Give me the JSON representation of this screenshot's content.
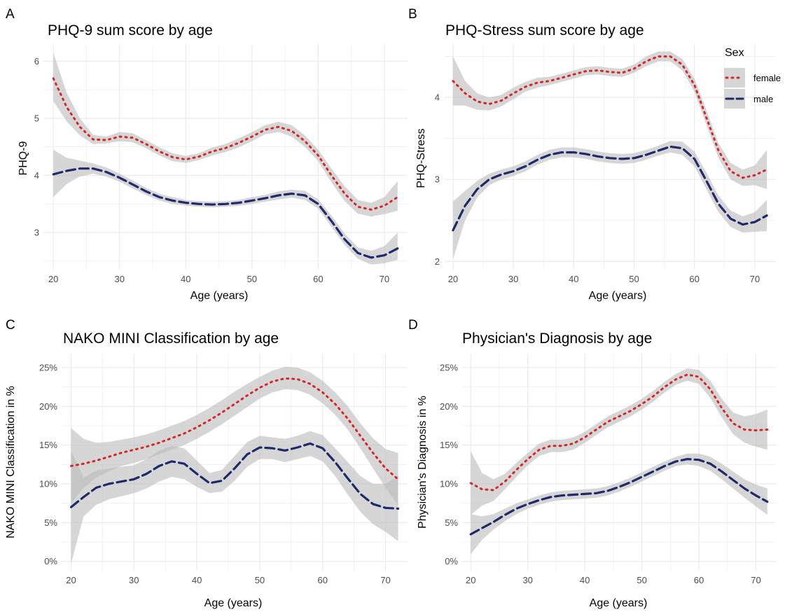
{
  "figure": {
    "legend": {
      "title": "Sex",
      "entries": [
        {
          "label": "female",
          "color": "#d62728",
          "style": "dotted"
        },
        {
          "label": "male",
          "color": "#1f2a6b",
          "style": "dashed"
        }
      ],
      "placement": "top-right of panel B"
    },
    "band_color": "#bdbdbd"
  },
  "chart_data": [
    {
      "panel_letter": "A",
      "type": "line",
      "title": "PHQ-9 sum score by age",
      "xlabel": "Age (years)",
      "ylabel": "PHQ-9",
      "xlim": [
        18.5,
        73.5
      ],
      "ylim": [
        2.35,
        6.3
      ],
      "x_ticks": [
        20,
        30,
        40,
        50,
        60,
        70
      ],
      "x_tick_labels": [
        "20",
        "30",
        "40",
        "50",
        "60",
        "70"
      ],
      "y_ticks": [
        3,
        4,
        5,
        6
      ],
      "y_tick_labels": [
        "3",
        "4",
        "5",
        "6"
      ],
      "grid": true,
      "series": [
        {
          "name": "female",
          "x": [
            20,
            22,
            24,
            26,
            28,
            30,
            32,
            34,
            36,
            38,
            40,
            42,
            44,
            46,
            48,
            50,
            52,
            54,
            56,
            58,
            60,
            62,
            64,
            66,
            68,
            70,
            72
          ],
          "y": [
            5.7,
            5.2,
            4.85,
            4.63,
            4.62,
            4.68,
            4.66,
            4.55,
            4.42,
            4.32,
            4.28,
            4.33,
            4.42,
            4.48,
            4.57,
            4.68,
            4.8,
            4.85,
            4.78,
            4.6,
            4.35,
            4.0,
            3.68,
            3.45,
            3.4,
            3.47,
            3.62
          ],
          "lower": [
            5.3,
            4.95,
            4.7,
            4.55,
            4.56,
            4.6,
            4.58,
            4.48,
            4.35,
            4.25,
            4.22,
            4.27,
            4.35,
            4.41,
            4.49,
            4.6,
            4.72,
            4.76,
            4.68,
            4.5,
            4.25,
            3.88,
            3.55,
            3.33,
            3.28,
            3.32,
            3.38
          ],
          "upper": [
            6.15,
            5.45,
            5.0,
            4.71,
            4.68,
            4.76,
            4.74,
            4.62,
            4.49,
            4.39,
            4.34,
            4.39,
            4.49,
            4.55,
            4.65,
            4.76,
            4.88,
            4.94,
            4.88,
            4.7,
            4.45,
            4.12,
            3.81,
            3.57,
            3.52,
            3.62,
            3.9
          ]
        },
        {
          "name": "male",
          "x": [
            20,
            22,
            24,
            26,
            28,
            30,
            32,
            34,
            36,
            38,
            40,
            42,
            44,
            46,
            48,
            50,
            52,
            54,
            56,
            58,
            60,
            62,
            64,
            66,
            68,
            70,
            72
          ],
          "y": [
            4.02,
            4.08,
            4.12,
            4.12,
            4.06,
            3.96,
            3.84,
            3.72,
            3.62,
            3.56,
            3.52,
            3.5,
            3.49,
            3.5,
            3.52,
            3.56,
            3.6,
            3.65,
            3.68,
            3.65,
            3.5,
            3.2,
            2.88,
            2.64,
            2.56,
            2.6,
            2.72
          ],
          "lower": [
            3.62,
            3.85,
            3.98,
            4.03,
            3.98,
            3.89,
            3.77,
            3.66,
            3.56,
            3.5,
            3.47,
            3.45,
            3.44,
            3.45,
            3.47,
            3.5,
            3.54,
            3.58,
            3.61,
            3.57,
            3.42,
            3.1,
            2.78,
            2.54,
            2.44,
            2.46,
            2.52
          ],
          "upper": [
            4.45,
            4.31,
            4.26,
            4.21,
            4.14,
            4.03,
            3.91,
            3.78,
            3.68,
            3.62,
            3.57,
            3.55,
            3.54,
            3.55,
            3.57,
            3.62,
            3.66,
            3.72,
            3.75,
            3.73,
            3.58,
            3.3,
            2.98,
            2.74,
            2.68,
            2.76,
            3.0
          ]
        }
      ]
    },
    {
      "panel_letter": "B",
      "type": "line",
      "title": "PHQ-Stress sum score by age",
      "xlabel": "Age (years)",
      "ylabel": "PHQ-Stress",
      "xlim": [
        18.5,
        73.5
      ],
      "ylim": [
        1.9,
        4.65
      ],
      "x_ticks": [
        20,
        30,
        40,
        50,
        60,
        70
      ],
      "x_tick_labels": [
        "20",
        "30",
        "40",
        "50",
        "60",
        "70"
      ],
      "y_ticks": [
        2,
        3,
        4
      ],
      "y_tick_labels": [
        "2",
        "3",
        "4"
      ],
      "grid": true,
      "series": [
        {
          "name": "female",
          "x": [
            20,
            22,
            24,
            26,
            28,
            30,
            32,
            34,
            36,
            38,
            40,
            42,
            44,
            46,
            48,
            50,
            52,
            54,
            56,
            58,
            60,
            62,
            64,
            66,
            68,
            70,
            72
          ],
          "y": [
            4.2,
            4.05,
            3.95,
            3.92,
            3.96,
            4.05,
            4.13,
            4.18,
            4.2,
            4.24,
            4.28,
            4.32,
            4.33,
            4.31,
            4.3,
            4.35,
            4.44,
            4.5,
            4.5,
            4.4,
            4.15,
            3.75,
            3.35,
            3.1,
            3.02,
            3.05,
            3.12
          ],
          "lower": [
            3.9,
            3.9,
            3.85,
            3.84,
            3.89,
            3.98,
            4.07,
            4.12,
            4.15,
            4.19,
            4.23,
            4.27,
            4.28,
            4.26,
            4.25,
            4.3,
            4.38,
            4.44,
            4.44,
            4.33,
            4.07,
            3.66,
            3.26,
            3.0,
            2.92,
            2.93,
            2.88
          ],
          "upper": [
            4.5,
            4.2,
            4.05,
            4.0,
            4.03,
            4.12,
            4.19,
            4.24,
            4.25,
            4.29,
            4.33,
            4.37,
            4.38,
            4.36,
            4.35,
            4.4,
            4.5,
            4.56,
            4.56,
            4.47,
            4.23,
            3.84,
            3.44,
            3.2,
            3.12,
            3.17,
            3.36
          ]
        },
        {
          "name": "male",
          "x": [
            20,
            22,
            24,
            26,
            28,
            30,
            32,
            34,
            36,
            38,
            40,
            42,
            44,
            46,
            48,
            50,
            52,
            54,
            56,
            58,
            60,
            62,
            64,
            66,
            68,
            70,
            72
          ],
          "y": [
            2.38,
            2.68,
            2.88,
            3.0,
            3.06,
            3.1,
            3.16,
            3.24,
            3.3,
            3.33,
            3.33,
            3.31,
            3.28,
            3.26,
            3.25,
            3.26,
            3.3,
            3.35,
            3.4,
            3.38,
            3.25,
            2.98,
            2.7,
            2.52,
            2.45,
            2.48,
            2.56
          ],
          "lower": [
            2.03,
            2.5,
            2.78,
            2.93,
            3.0,
            3.04,
            3.1,
            3.18,
            3.24,
            3.27,
            3.27,
            3.25,
            3.22,
            3.2,
            3.19,
            3.2,
            3.24,
            3.29,
            3.33,
            3.3,
            3.16,
            2.88,
            2.6,
            2.42,
            2.35,
            2.36,
            2.37
          ],
          "upper": [
            2.73,
            2.86,
            2.98,
            3.07,
            3.12,
            3.16,
            3.22,
            3.3,
            3.36,
            3.39,
            3.39,
            3.37,
            3.34,
            3.32,
            3.31,
            3.32,
            3.36,
            3.41,
            3.47,
            3.46,
            3.34,
            3.08,
            2.8,
            2.62,
            2.55,
            2.6,
            2.75
          ]
        }
      ]
    },
    {
      "panel_letter": "C",
      "type": "line",
      "title": "NAKO MINI Classification by age",
      "xlabel": "Age (years)",
      "ylabel": "NAKO MINI Classification in %",
      "xlim": [
        18.5,
        73.5
      ],
      "ylim": [
        -1.2,
        26.8
      ],
      "x_ticks": [
        20,
        30,
        40,
        50,
        60,
        70
      ],
      "x_tick_labels": [
        "20",
        "30",
        "40",
        "50",
        "60",
        "70"
      ],
      "y_ticks": [
        0,
        5,
        10,
        15,
        20,
        25
      ],
      "y_tick_labels": [
        "0%",
        "5%",
        "10%",
        "15%",
        "20%",
        "25%"
      ],
      "grid": true,
      "series": [
        {
          "name": "female",
          "x": [
            20,
            22,
            24,
            26,
            28,
            30,
            32,
            34,
            36,
            38,
            40,
            42,
            44,
            46,
            48,
            50,
            52,
            54,
            56,
            58,
            60,
            62,
            64,
            66,
            68,
            70,
            72
          ],
          "y": [
            12.3,
            12.6,
            13.0,
            13.5,
            14.0,
            14.4,
            14.8,
            15.3,
            15.9,
            16.5,
            17.3,
            18.2,
            19.2,
            20.3,
            21.4,
            22.4,
            23.2,
            23.6,
            23.5,
            22.9,
            21.8,
            20.3,
            18.4,
            16.2,
            14.0,
            12.0,
            10.6
          ],
          "lower": [
            7.5,
            9.5,
            10.8,
            11.6,
            12.3,
            12.7,
            13.2,
            13.8,
            14.4,
            15.0,
            15.8,
            16.7,
            17.7,
            18.8,
            19.9,
            21.0,
            21.8,
            22.2,
            22.1,
            21.5,
            20.4,
            18.9,
            17.0,
            14.6,
            12.0,
            9.5,
            7.2
          ],
          "upper": [
            17.2,
            15.8,
            15.3,
            15.4,
            15.7,
            16.0,
            16.4,
            16.9,
            17.5,
            18.1,
            18.9,
            19.8,
            20.8,
            21.9,
            22.9,
            23.8,
            24.6,
            25.1,
            25.0,
            24.4,
            23.3,
            21.8,
            20.0,
            17.8,
            15.9,
            14.5,
            14.0
          ]
        },
        {
          "name": "male",
          "x": [
            20,
            22,
            24,
            26,
            28,
            30,
            32,
            34,
            36,
            38,
            40,
            42,
            44,
            46,
            48,
            50,
            52,
            54,
            56,
            58,
            60,
            62,
            64,
            66,
            68,
            70,
            72
          ],
          "y": [
            7.0,
            8.3,
            9.5,
            10.0,
            10.3,
            10.6,
            11.3,
            12.3,
            12.9,
            12.6,
            11.3,
            10.1,
            10.4,
            12.0,
            13.8,
            14.7,
            14.6,
            14.3,
            14.7,
            15.2,
            14.6,
            12.8,
            10.7,
            8.7,
            7.4,
            6.9,
            6.8
          ],
          "lower": [
            -0.3,
            5.8,
            7.3,
            8.0,
            8.4,
            8.8,
            9.4,
            10.3,
            10.9,
            10.6,
            9.6,
            8.8,
            9.0,
            10.4,
            12.2,
            13.2,
            13.2,
            12.8,
            13.2,
            13.6,
            12.9,
            11.0,
            8.6,
            6.4,
            4.8,
            3.8,
            2.6
          ],
          "upper": [
            14.3,
            10.8,
            11.7,
            12.0,
            12.2,
            12.4,
            13.2,
            14.3,
            14.9,
            14.6,
            13.0,
            11.4,
            11.8,
            13.6,
            15.4,
            16.2,
            16.0,
            15.8,
            16.2,
            16.8,
            16.3,
            14.6,
            12.8,
            11.0,
            10.0,
            10.0,
            11.0
          ]
        }
      ]
    },
    {
      "panel_letter": "D",
      "type": "line",
      "title": "Physician's Diagnosis by age",
      "xlabel": "Age (years)",
      "ylabel": "Physician's Diagnosis in %",
      "xlim": [
        18.5,
        73.5
      ],
      "ylim": [
        -1.2,
        26.8
      ],
      "x_ticks": [
        20,
        30,
        40,
        50,
        60,
        70
      ],
      "x_tick_labels": [
        "20",
        "30",
        "40",
        "50",
        "60",
        "70"
      ],
      "y_ticks": [
        0,
        5,
        10,
        15,
        20,
        25
      ],
      "y_tick_labels": [
        "0%",
        "5%",
        "10%",
        "15%",
        "20%",
        "25%"
      ],
      "grid": true,
      "series": [
        {
          "name": "female",
          "x": [
            20,
            22,
            24,
            26,
            28,
            30,
            32,
            34,
            36,
            38,
            40,
            42,
            44,
            46,
            48,
            50,
            52,
            54,
            56,
            58,
            60,
            62,
            64,
            66,
            68,
            70,
            72
          ],
          "y": [
            10.1,
            9.3,
            9.2,
            10.3,
            11.8,
            13.2,
            14.4,
            14.9,
            14.9,
            15.2,
            16.0,
            17.0,
            18.0,
            18.7,
            19.4,
            20.3,
            21.3,
            22.5,
            23.5,
            24.1,
            23.8,
            22.2,
            19.8,
            17.8,
            17.0,
            16.9,
            17.0
          ],
          "lower": [
            6.0,
            7.2,
            7.8,
            9.3,
            10.9,
            12.4,
            13.6,
            14.1,
            14.1,
            14.4,
            15.3,
            16.3,
            17.3,
            18.0,
            18.7,
            19.6,
            20.6,
            21.8,
            22.8,
            23.3,
            22.9,
            21.1,
            18.6,
            16.4,
            15.3,
            14.8,
            14.4
          ],
          "upper": [
            14.2,
            11.4,
            10.6,
            11.3,
            12.7,
            14.0,
            15.2,
            15.7,
            15.7,
            16.0,
            16.7,
            17.7,
            18.7,
            19.4,
            20.1,
            21.0,
            22.0,
            23.2,
            24.2,
            24.9,
            24.7,
            23.3,
            21.0,
            19.2,
            18.7,
            19.0,
            19.6
          ]
        },
        {
          "name": "male",
          "x": [
            20,
            22,
            24,
            26,
            28,
            30,
            32,
            34,
            36,
            38,
            40,
            42,
            44,
            46,
            48,
            50,
            52,
            54,
            56,
            58,
            60,
            62,
            64,
            66,
            68,
            70,
            72
          ],
          "y": [
            3.5,
            4.3,
            5.1,
            6.0,
            6.8,
            7.4,
            7.9,
            8.3,
            8.5,
            8.6,
            8.7,
            8.8,
            9.1,
            9.6,
            10.2,
            10.9,
            11.6,
            12.3,
            12.9,
            13.2,
            13.1,
            12.6,
            11.6,
            10.5,
            9.4,
            8.5,
            7.7
          ],
          "lower": [
            0.9,
            2.8,
            4.1,
            5.2,
            6.1,
            6.8,
            7.3,
            7.7,
            7.9,
            8.0,
            8.1,
            8.2,
            8.5,
            9.0,
            9.6,
            10.3,
            11.0,
            11.7,
            12.3,
            12.5,
            12.3,
            11.7,
            10.6,
            9.4,
            8.2,
            7.1,
            6.0
          ],
          "upper": [
            6.1,
            5.8,
            6.1,
            6.8,
            7.5,
            8.0,
            8.5,
            8.9,
            9.1,
            9.2,
            9.3,
            9.4,
            9.7,
            10.2,
            10.8,
            11.5,
            12.2,
            12.9,
            13.5,
            13.9,
            13.9,
            13.5,
            12.6,
            11.6,
            10.6,
            9.9,
            9.4
          ]
        }
      ]
    }
  ]
}
